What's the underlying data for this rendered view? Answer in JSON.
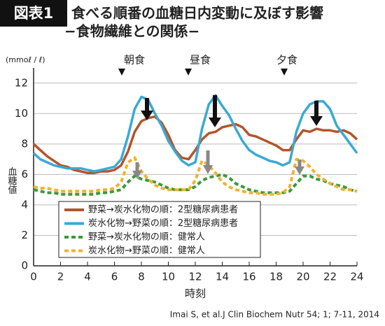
{
  "chart_data": {
    "type": "line",
    "badge": "図表1",
    "title": "食べる順番の血糖日内変動に及ぼす影響",
    "subtitle": "−食物繊維との関係−",
    "y_unit": "(mmoℓ / ℓ)",
    "y_label": "血糖値",
    "x_label": "時刻",
    "meals": [
      "朝食",
      "昼食",
      "夕食"
    ],
    "source": "Imai S, et al.J Clin Biochem Nutr 54; 1; 7-11, 2014",
    "x": [
      0,
      0.5,
      1,
      1.5,
      2,
      2.5,
      3,
      3.5,
      4,
      4.5,
      5,
      5.5,
      6,
      6.5,
      7,
      7.5,
      8,
      8.5,
      9,
      9.5,
      10,
      10.5,
      11,
      11.5,
      12,
      12.5,
      13,
      13.5,
      14,
      14.5,
      15,
      15.5,
      16,
      16.5,
      17,
      17.5,
      18,
      18.5,
      19,
      19.5,
      20,
      20.5,
      21,
      21.5,
      22,
      22.5,
      23,
      23.5,
      24
    ],
    "xlim": [
      0,
      24
    ],
    "xticks": [
      0,
      2,
      4,
      6,
      8,
      10,
      12,
      14,
      16,
      18,
      20,
      22,
      24
    ],
    "ylim": [
      0,
      13
    ],
    "yticks": [
      0,
      2,
      4,
      6,
      8,
      10,
      12
    ],
    "grid": true,
    "series": [
      {
        "name": "野菜→炭水化物の順：2型糖尿病患者",
        "color": "#b5542a",
        "dashed": false,
        "values": [
          8.0,
          7.6,
          7.2,
          6.9,
          6.6,
          6.5,
          6.3,
          6.2,
          6.1,
          6.1,
          6.2,
          6.2,
          6.3,
          6.6,
          7.5,
          8.8,
          9.5,
          9.7,
          9.8,
          9.4,
          8.6,
          7.6,
          7.1,
          7.0,
          7.6,
          8.3,
          8.7,
          8.8,
          9.1,
          9.2,
          9.3,
          9.1,
          8.6,
          8.5,
          8.3,
          8.1,
          7.9,
          7.6,
          7.6,
          8.3,
          8.9,
          8.8,
          9.0,
          8.9,
          8.9,
          8.8,
          8.9,
          8.7,
          8.3
        ]
      },
      {
        "name": "炭水化物→野菜の順：2型糖尿病患者",
        "color": "#3aa9d4",
        "dashed": false,
        "values": [
          7.4,
          7.0,
          6.8,
          6.6,
          6.5,
          6.4,
          6.4,
          6.4,
          6.3,
          6.2,
          6.3,
          6.4,
          6.5,
          7.0,
          8.5,
          10.3,
          11.1,
          10.9,
          10.0,
          9.2,
          8.2,
          7.5,
          6.9,
          6.6,
          6.8,
          9.0,
          10.6,
          11.2,
          10.5,
          9.9,
          9.0,
          8.2,
          7.6,
          7.3,
          7.1,
          6.9,
          6.8,
          6.6,
          6.8,
          8.8,
          10.0,
          10.6,
          10.8,
          10.8,
          10.3,
          9.2,
          8.6,
          8.0,
          7.4
        ]
      },
      {
        "name": "野菜→炭水化物の順：健常人",
        "color": "#3a9a3a",
        "dashed": true,
        "values": [
          5.0,
          4.9,
          4.8,
          4.8,
          4.7,
          4.7,
          4.7,
          4.7,
          4.7,
          4.7,
          4.8,
          4.8,
          4.9,
          5.0,
          5.5,
          5.9,
          5.7,
          5.6,
          5.5,
          5.3,
          5.1,
          5.0,
          5.0,
          5.0,
          5.2,
          5.6,
          5.8,
          5.9,
          6.0,
          5.8,
          5.4,
          5.2,
          5.0,
          4.9,
          4.8,
          4.8,
          4.8,
          4.8,
          4.9,
          5.4,
          5.9,
          5.9,
          5.7,
          5.6,
          5.4,
          5.3,
          5.2,
          5.0,
          4.9
        ]
      },
      {
        "name": "炭水化物→野菜の順：健常人",
        "color": "#f2b230",
        "dashed": true,
        "values": [
          5.2,
          5.1,
          5.1,
          5.0,
          4.9,
          4.9,
          4.9,
          4.9,
          4.9,
          4.9,
          5.0,
          5.0,
          5.1,
          5.5,
          6.8,
          7.1,
          6.2,
          5.7,
          5.3,
          5.1,
          5.0,
          5.0,
          5.0,
          5.0,
          5.6,
          6.9,
          6.6,
          6.1,
          5.5,
          5.2,
          5.0,
          4.9,
          4.8,
          4.8,
          4.7,
          4.7,
          4.7,
          4.8,
          5.2,
          7.0,
          6.9,
          6.5,
          6.0,
          5.7,
          5.4,
          5.2,
          5.0,
          5.0,
          4.9
        ]
      }
    ]
  }
}
